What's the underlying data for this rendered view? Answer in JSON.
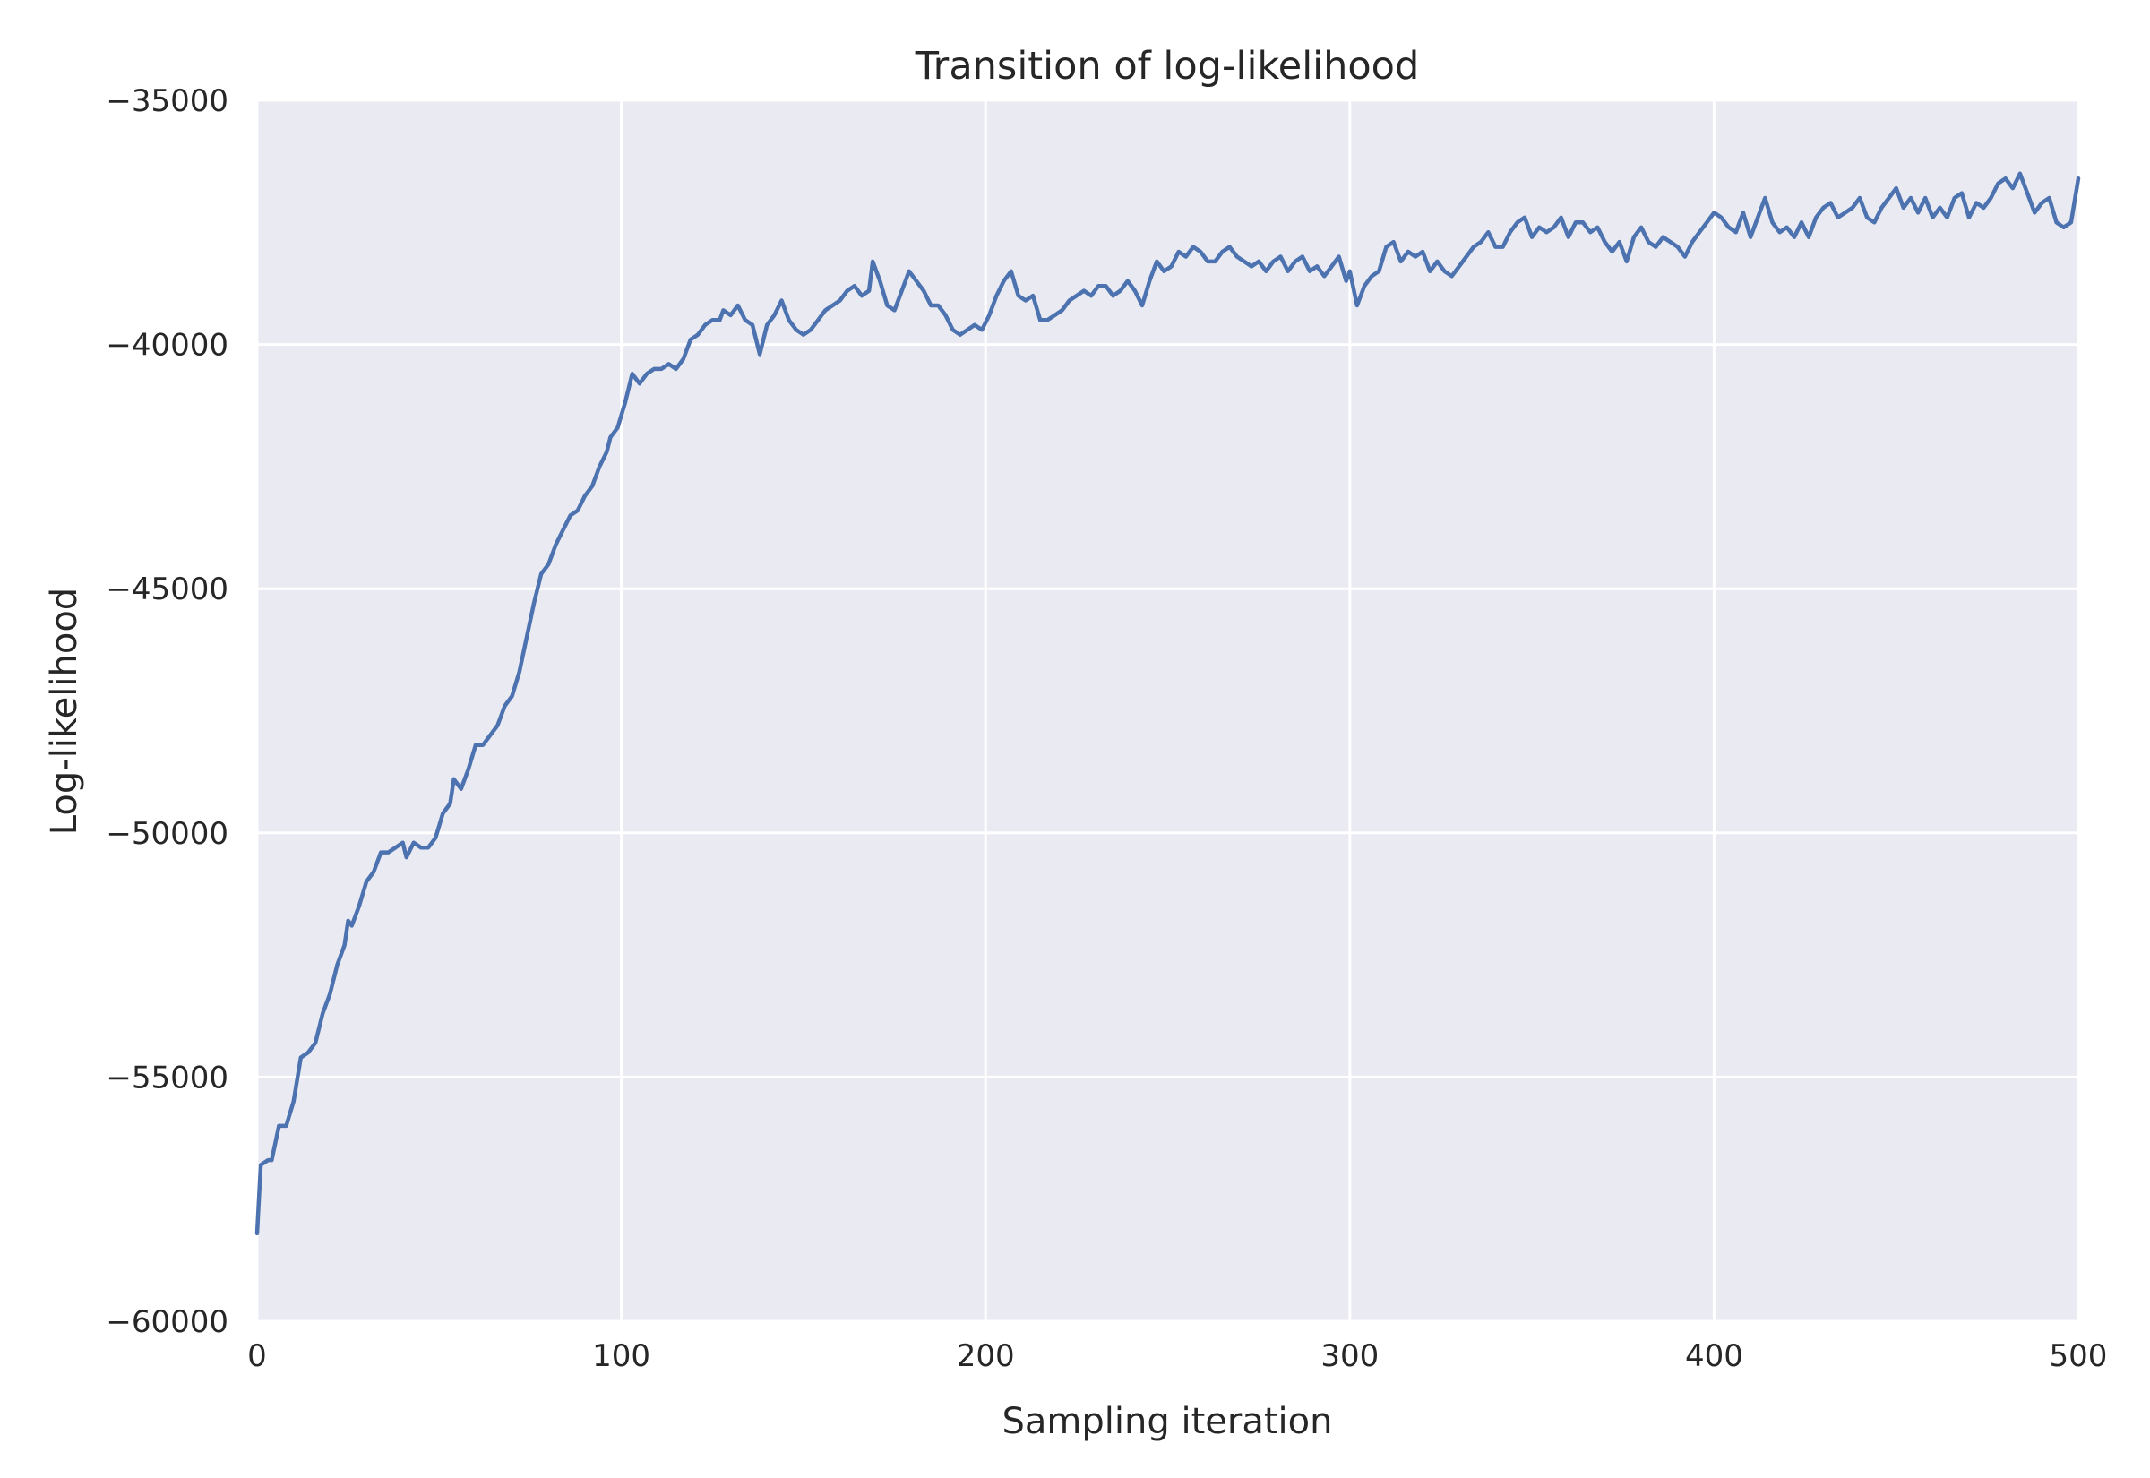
{
  "chart_data": {
    "type": "line",
    "title": "Transition of log-likelihood",
    "xlabel": "Sampling iteration",
    "ylabel": "Log-likelihood",
    "xlim": [
      0,
      500
    ],
    "ylim": [
      -60000,
      -35000
    ],
    "xticks": [
      0,
      100,
      200,
      300,
      400,
      500
    ],
    "yticks": [
      -60000,
      -55000,
      -50000,
      -45000,
      -40000,
      -35000
    ],
    "xtick_labels": [
      "0",
      "100",
      "200",
      "300",
      "400",
      "500"
    ],
    "ytick_labels": [
      "−60000",
      "−55000",
      "−50000",
      "−45000",
      "−40000",
      "−35000"
    ],
    "grid": true,
    "background_color": "#eaeaf2",
    "grid_color": "#ffffff",
    "series": [
      {
        "color": "#4c72b0",
        "points": [
          [
            0,
            -58200
          ],
          [
            1,
            -56800
          ],
          [
            3,
            -56700
          ],
          [
            4,
            -56700
          ],
          [
            6,
            -56000
          ],
          [
            8,
            -56000
          ],
          [
            10,
            -55500
          ],
          [
            12,
            -54600
          ],
          [
            14,
            -54500
          ],
          [
            16,
            -54300
          ],
          [
            18,
            -53700
          ],
          [
            20,
            -53300
          ],
          [
            22,
            -52700
          ],
          [
            24,
            -52300
          ],
          [
            25,
            -51800
          ],
          [
            26,
            -51900
          ],
          [
            28,
            -51500
          ],
          [
            30,
            -51000
          ],
          [
            32,
            -50800
          ],
          [
            34,
            -50400
          ],
          [
            36,
            -50400
          ],
          [
            38,
            -50300
          ],
          [
            40,
            -50200
          ],
          [
            41,
            -50500
          ],
          [
            43,
            -50200
          ],
          [
            45,
            -50300
          ],
          [
            47,
            -50300
          ],
          [
            49,
            -50100
          ],
          [
            51,
            -49600
          ],
          [
            53,
            -49400
          ],
          [
            54,
            -48900
          ],
          [
            56,
            -49100
          ],
          [
            58,
            -48700
          ],
          [
            60,
            -48200
          ],
          [
            62,
            -48200
          ],
          [
            64,
            -48000
          ],
          [
            66,
            -47800
          ],
          [
            68,
            -47400
          ],
          [
            70,
            -47200
          ],
          [
            72,
            -46700
          ],
          [
            74,
            -46000
          ],
          [
            76,
            -45300
          ],
          [
            78,
            -44700
          ],
          [
            80,
            -44500
          ],
          [
            82,
            -44100
          ],
          [
            84,
            -43800
          ],
          [
            86,
            -43500
          ],
          [
            88,
            -43400
          ],
          [
            90,
            -43100
          ],
          [
            92,
            -42900
          ],
          [
            94,
            -42500
          ],
          [
            96,
            -42200
          ],
          [
            97,
            -41900
          ],
          [
            99,
            -41700
          ],
          [
            101,
            -41200
          ],
          [
            103,
            -40600
          ],
          [
            105,
            -40800
          ],
          [
            107,
            -40600
          ],
          [
            109,
            -40500
          ],
          [
            111,
            -40500
          ],
          [
            113,
            -40400
          ],
          [
            115,
            -40500
          ],
          [
            117,
            -40300
          ],
          [
            119,
            -39900
          ],
          [
            121,
            -39800
          ],
          [
            123,
            -39600
          ],
          [
            125,
            -39500
          ],
          [
            127,
            -39500
          ],
          [
            128,
            -39300
          ],
          [
            130,
            -39400
          ],
          [
            132,
            -39200
          ],
          [
            134,
            -39500
          ],
          [
            136,
            -39600
          ],
          [
            138,
            -40200
          ],
          [
            140,
            -39600
          ],
          [
            142,
            -39400
          ],
          [
            144,
            -39100
          ],
          [
            146,
            -39500
          ],
          [
            148,
            -39700
          ],
          [
            150,
            -39800
          ],
          [
            152,
            -39700
          ],
          [
            154,
            -39500
          ],
          [
            156,
            -39300
          ],
          [
            158,
            -39200
          ],
          [
            160,
            -39100
          ],
          [
            162,
            -38900
          ],
          [
            164,
            -38800
          ],
          [
            166,
            -39000
          ],
          [
            168,
            -38900
          ],
          [
            169,
            -38300
          ],
          [
            171,
            -38700
          ],
          [
            173,
            -39200
          ],
          [
            175,
            -39300
          ],
          [
            177,
            -38900
          ],
          [
            179,
            -38500
          ],
          [
            181,
            -38700
          ],
          [
            183,
            -38900
          ],
          [
            185,
            -39200
          ],
          [
            187,
            -39200
          ],
          [
            189,
            -39400
          ],
          [
            191,
            -39700
          ],
          [
            193,
            -39800
          ],
          [
            195,
            -39700
          ],
          [
            197,
            -39600
          ],
          [
            199,
            -39700
          ],
          [
            201,
            -39400
          ],
          [
            203,
            -39000
          ],
          [
            205,
            -38700
          ],
          [
            207,
            -38500
          ],
          [
            209,
            -39000
          ],
          [
            211,
            -39100
          ],
          [
            213,
            -39000
          ],
          [
            215,
            -39500
          ],
          [
            217,
            -39500
          ],
          [
            219,
            -39400
          ],
          [
            221,
            -39300
          ],
          [
            223,
            -39100
          ],
          [
            225,
            -39000
          ],
          [
            227,
            -38900
          ],
          [
            229,
            -39000
          ],
          [
            231,
            -38800
          ],
          [
            233,
            -38800
          ],
          [
            235,
            -39000
          ],
          [
            237,
            -38900
          ],
          [
            239,
            -38700
          ],
          [
            241,
            -38900
          ],
          [
            243,
            -39200
          ],
          [
            245,
            -38700
          ],
          [
            247,
            -38300
          ],
          [
            249,
            -38500
          ],
          [
            251,
            -38400
          ],
          [
            253,
            -38100
          ],
          [
            255,
            -38200
          ],
          [
            257,
            -38000
          ],
          [
            259,
            -38100
          ],
          [
            261,
            -38300
          ],
          [
            263,
            -38300
          ],
          [
            265,
            -38100
          ],
          [
            267,
            -38000
          ],
          [
            269,
            -38200
          ],
          [
            271,
            -38300
          ],
          [
            273,
            -38400
          ],
          [
            275,
            -38300
          ],
          [
            277,
            -38500
          ],
          [
            279,
            -38300
          ],
          [
            281,
            -38200
          ],
          [
            283,
            -38500
          ],
          [
            285,
            -38300
          ],
          [
            287,
            -38200
          ],
          [
            289,
            -38500
          ],
          [
            291,
            -38400
          ],
          [
            293,
            -38600
          ],
          [
            295,
            -38400
          ],
          [
            297,
            -38200
          ],
          [
            299,
            -38700
          ],
          [
            300,
            -38500
          ],
          [
            302,
            -39200
          ],
          [
            304,
            -38800
          ],
          [
            306,
            -38600
          ],
          [
            308,
            -38500
          ],
          [
            310,
            -38000
          ],
          [
            312,
            -37900
          ],
          [
            314,
            -38300
          ],
          [
            316,
            -38100
          ],
          [
            318,
            -38200
          ],
          [
            320,
            -38100
          ],
          [
            322,
            -38500
          ],
          [
            324,
            -38300
          ],
          [
            326,
            -38500
          ],
          [
            328,
            -38600
          ],
          [
            330,
            -38400
          ],
          [
            332,
            -38200
          ],
          [
            334,
            -38000
          ],
          [
            336,
            -37900
          ],
          [
            338,
            -37700
          ],
          [
            340,
            -38000
          ],
          [
            342,
            -38000
          ],
          [
            344,
            -37700
          ],
          [
            346,
            -37500
          ],
          [
            348,
            -37400
          ],
          [
            350,
            -37800
          ],
          [
            352,
            -37600
          ],
          [
            354,
            -37700
          ],
          [
            356,
            -37600
          ],
          [
            358,
            -37400
          ],
          [
            360,
            -37800
          ],
          [
            362,
            -37500
          ],
          [
            364,
            -37500
          ],
          [
            366,
            -37700
          ],
          [
            368,
            -37600
          ],
          [
            370,
            -37900
          ],
          [
            372,
            -38100
          ],
          [
            374,
            -37900
          ],
          [
            376,
            -38300
          ],
          [
            378,
            -37800
          ],
          [
            380,
            -37600
          ],
          [
            382,
            -37900
          ],
          [
            384,
            -38000
          ],
          [
            386,
            -37800
          ],
          [
            388,
            -37900
          ],
          [
            390,
            -38000
          ],
          [
            392,
            -38200
          ],
          [
            394,
            -37900
          ],
          [
            396,
            -37700
          ],
          [
            398,
            -37500
          ],
          [
            400,
            -37300
          ],
          [
            402,
            -37400
          ],
          [
            404,
            -37600
          ],
          [
            406,
            -37700
          ],
          [
            408,
            -37300
          ],
          [
            410,
            -37800
          ],
          [
            412,
            -37400
          ],
          [
            414,
            -37000
          ],
          [
            416,
            -37500
          ],
          [
            418,
            -37700
          ],
          [
            420,
            -37600
          ],
          [
            422,
            -37800
          ],
          [
            424,
            -37500
          ],
          [
            426,
            -37800
          ],
          [
            428,
            -37400
          ],
          [
            430,
            -37200
          ],
          [
            432,
            -37100
          ],
          [
            434,
            -37400
          ],
          [
            436,
            -37300
          ],
          [
            438,
            -37200
          ],
          [
            440,
            -37000
          ],
          [
            442,
            -37400
          ],
          [
            444,
            -37500
          ],
          [
            446,
            -37200
          ],
          [
            448,
            -37000
          ],
          [
            450,
            -36800
          ],
          [
            452,
            -37200
          ],
          [
            454,
            -37000
          ],
          [
            456,
            -37300
          ],
          [
            458,
            -37000
          ],
          [
            460,
            -37400
          ],
          [
            462,
            -37200
          ],
          [
            464,
            -37400
          ],
          [
            466,
            -37000
          ],
          [
            468,
            -36900
          ],
          [
            470,
            -37400
          ],
          [
            472,
            -37100
          ],
          [
            474,
            -37200
          ],
          [
            476,
            -37000
          ],
          [
            478,
            -36700
          ],
          [
            480,
            -36600
          ],
          [
            482,
            -36800
          ],
          [
            484,
            -36500
          ],
          [
            486,
            -36900
          ],
          [
            488,
            -37300
          ],
          [
            490,
            -37100
          ],
          [
            492,
            -37000
          ],
          [
            494,
            -37500
          ],
          [
            496,
            -37600
          ],
          [
            498,
            -37500
          ],
          [
            500,
            -36600
          ]
        ]
      }
    ]
  }
}
